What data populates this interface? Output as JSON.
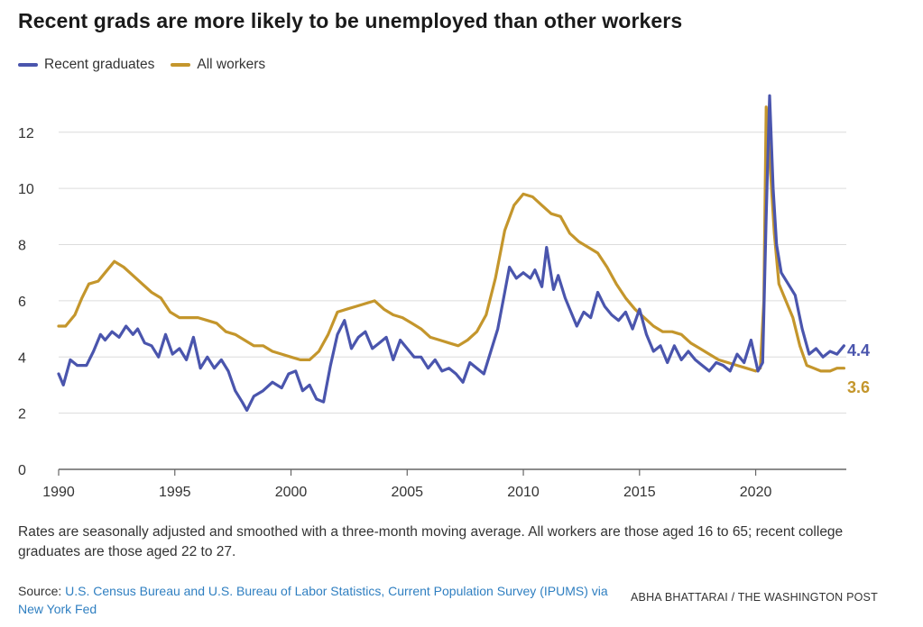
{
  "title": "Recent grads are more likely to be unemployed than other workers",
  "legend": [
    {
      "label": "Recent graduates",
      "color": "#4a55ad"
    },
    {
      "label": "All workers",
      "color": "#c4962c"
    }
  ],
  "note": "Rates are seasonally adjusted and smoothed with a three-month moving average. All workers are those aged 16 to 65; recent college graduates are those aged 22 to 27.",
  "source": {
    "prefix": "Source: ",
    "link_text": "U.S. Census Bureau and U.S. Bureau of Labor Statistics, Current Population Survey (IPUMS) via New York Fed"
  },
  "credit": "ABHA BHATTARAI / THE WASHINGTON POST",
  "chart_data": {
    "type": "line",
    "title": "Recent grads are more likely to be unemployed than other workers",
    "xlabel": "",
    "ylabel": "",
    "xlim": [
      1990,
      2023.9
    ],
    "ylim": [
      0,
      13.5
    ],
    "x_ticks": [
      "1990",
      "1995",
      "2000",
      "2005",
      "2010",
      "2015",
      "2020"
    ],
    "y_ticks": [
      "0",
      "2",
      "4",
      "6",
      "8",
      "10",
      "12"
    ],
    "grid": "horizontal",
    "legend_position": "top-left",
    "end_labels": [
      "4.4",
      "3.6"
    ],
    "series": [
      {
        "name": "Recent graduates",
        "color": "#4a55ad",
        "points": [
          [
            1990.0,
            3.4
          ],
          [
            1990.2,
            3.0
          ],
          [
            1990.5,
            3.9
          ],
          [
            1990.8,
            3.7
          ],
          [
            1991.2,
            3.7
          ],
          [
            1991.5,
            4.2
          ],
          [
            1991.8,
            4.8
          ],
          [
            1992.0,
            4.6
          ],
          [
            1992.3,
            4.9
          ],
          [
            1992.6,
            4.7
          ],
          [
            1992.9,
            5.1
          ],
          [
            1993.2,
            4.8
          ],
          [
            1993.4,
            5.0
          ],
          [
            1993.7,
            4.5
          ],
          [
            1994.0,
            4.4
          ],
          [
            1994.3,
            4.0
          ],
          [
            1994.6,
            4.8
          ],
          [
            1994.9,
            4.1
          ],
          [
            1995.2,
            4.3
          ],
          [
            1995.5,
            3.9
          ],
          [
            1995.8,
            4.7
          ],
          [
            1996.1,
            3.6
          ],
          [
            1996.4,
            4.0
          ],
          [
            1996.7,
            3.6
          ],
          [
            1997.0,
            3.9
          ],
          [
            1997.3,
            3.5
          ],
          [
            1997.6,
            2.8
          ],
          [
            1997.9,
            2.4
          ],
          [
            1998.1,
            2.1
          ],
          [
            1998.4,
            2.6
          ],
          [
            1998.8,
            2.8
          ],
          [
            1999.2,
            3.1
          ],
          [
            1999.6,
            2.9
          ],
          [
            1999.9,
            3.4
          ],
          [
            2000.2,
            3.5
          ],
          [
            2000.5,
            2.8
          ],
          [
            2000.8,
            3.0
          ],
          [
            2001.1,
            2.5
          ],
          [
            2001.4,
            2.4
          ],
          [
            2001.7,
            3.7
          ],
          [
            2002.0,
            4.8
          ],
          [
            2002.3,
            5.3
          ],
          [
            2002.6,
            4.3
          ],
          [
            2002.9,
            4.7
          ],
          [
            2003.2,
            4.9
          ],
          [
            2003.5,
            4.3
          ],
          [
            2003.8,
            4.5
          ],
          [
            2004.1,
            4.7
          ],
          [
            2004.4,
            3.9
          ],
          [
            2004.7,
            4.6
          ],
          [
            2005.0,
            4.3
          ],
          [
            2005.3,
            4.0
          ],
          [
            2005.6,
            4.0
          ],
          [
            2005.9,
            3.6
          ],
          [
            2006.2,
            3.9
          ],
          [
            2006.5,
            3.5
          ],
          [
            2006.8,
            3.6
          ],
          [
            2007.1,
            3.4
          ],
          [
            2007.4,
            3.1
          ],
          [
            2007.7,
            3.8
          ],
          [
            2008.0,
            3.6
          ],
          [
            2008.3,
            3.4
          ],
          [
            2008.6,
            4.2
          ],
          [
            2008.9,
            5.0
          ],
          [
            2009.2,
            6.3
          ],
          [
            2009.4,
            7.2
          ],
          [
            2009.7,
            6.8
          ],
          [
            2010.0,
            7.0
          ],
          [
            2010.3,
            6.8
          ],
          [
            2010.5,
            7.1
          ],
          [
            2010.8,
            6.5
          ],
          [
            2011.0,
            7.9
          ],
          [
            2011.3,
            6.4
          ],
          [
            2011.5,
            6.9
          ],
          [
            2011.8,
            6.1
          ],
          [
            2012.0,
            5.7
          ],
          [
            2012.3,
            5.1
          ],
          [
            2012.6,
            5.6
          ],
          [
            2012.9,
            5.4
          ],
          [
            2013.2,
            6.3
          ],
          [
            2013.5,
            5.8
          ],
          [
            2013.8,
            5.5
          ],
          [
            2014.1,
            5.3
          ],
          [
            2014.4,
            5.6
          ],
          [
            2014.7,
            5.0
          ],
          [
            2015.0,
            5.7
          ],
          [
            2015.3,
            4.8
          ],
          [
            2015.6,
            4.2
          ],
          [
            2015.9,
            4.4
          ],
          [
            2016.2,
            3.8
          ],
          [
            2016.5,
            4.4
          ],
          [
            2016.8,
            3.9
          ],
          [
            2017.1,
            4.2
          ],
          [
            2017.4,
            3.9
          ],
          [
            2017.7,
            3.7
          ],
          [
            2018.0,
            3.5
          ],
          [
            2018.3,
            3.8
          ],
          [
            2018.6,
            3.7
          ],
          [
            2018.9,
            3.5
          ],
          [
            2019.2,
            4.1
          ],
          [
            2019.5,
            3.8
          ],
          [
            2019.8,
            4.6
          ],
          [
            2020.1,
            3.5
          ],
          [
            2020.3,
            3.8
          ],
          [
            2020.45,
            9.0
          ],
          [
            2020.6,
            13.3
          ],
          [
            2020.75,
            10.0
          ],
          [
            2020.9,
            8.0
          ],
          [
            2021.1,
            7.0
          ],
          [
            2021.4,
            6.6
          ],
          [
            2021.7,
            6.2
          ],
          [
            2022.0,
            5.0
          ],
          [
            2022.3,
            4.1
          ],
          [
            2022.6,
            4.3
          ],
          [
            2022.9,
            4.0
          ],
          [
            2023.2,
            4.2
          ],
          [
            2023.5,
            4.1
          ],
          [
            2023.8,
            4.4
          ]
        ]
      },
      {
        "name": "All workers",
        "color": "#c4962c",
        "points": [
          [
            1990.0,
            5.1
          ],
          [
            1990.3,
            5.1
          ],
          [
            1990.7,
            5.5
          ],
          [
            1991.0,
            6.1
          ],
          [
            1991.3,
            6.6
          ],
          [
            1991.7,
            6.7
          ],
          [
            1992.0,
            7.0
          ],
          [
            1992.4,
            7.4
          ],
          [
            1992.8,
            7.2
          ],
          [
            1993.2,
            6.9
          ],
          [
            1993.6,
            6.6
          ],
          [
            1994.0,
            6.3
          ],
          [
            1994.4,
            6.1
          ],
          [
            1994.8,
            5.6
          ],
          [
            1995.2,
            5.4
          ],
          [
            1995.6,
            5.4
          ],
          [
            1996.0,
            5.4
          ],
          [
            1996.4,
            5.3
          ],
          [
            1996.8,
            5.2
          ],
          [
            1997.2,
            4.9
          ],
          [
            1997.6,
            4.8
          ],
          [
            1998.0,
            4.6
          ],
          [
            1998.4,
            4.4
          ],
          [
            1998.8,
            4.4
          ],
          [
            1999.2,
            4.2
          ],
          [
            1999.6,
            4.1
          ],
          [
            2000.0,
            4.0
          ],
          [
            2000.4,
            3.9
          ],
          [
            2000.8,
            3.9
          ],
          [
            2001.2,
            4.2
          ],
          [
            2001.6,
            4.8
          ],
          [
            2002.0,
            5.6
          ],
          [
            2002.4,
            5.7
          ],
          [
            2002.8,
            5.8
          ],
          [
            2003.2,
            5.9
          ],
          [
            2003.6,
            6.0
          ],
          [
            2004.0,
            5.7
          ],
          [
            2004.4,
            5.5
          ],
          [
            2004.8,
            5.4
          ],
          [
            2005.2,
            5.2
          ],
          [
            2005.6,
            5.0
          ],
          [
            2006.0,
            4.7
          ],
          [
            2006.4,
            4.6
          ],
          [
            2006.8,
            4.5
          ],
          [
            2007.2,
            4.4
          ],
          [
            2007.6,
            4.6
          ],
          [
            2008.0,
            4.9
          ],
          [
            2008.4,
            5.5
          ],
          [
            2008.8,
            6.8
          ],
          [
            2009.2,
            8.5
          ],
          [
            2009.6,
            9.4
          ],
          [
            2010.0,
            9.8
          ],
          [
            2010.4,
            9.7
          ],
          [
            2010.8,
            9.4
          ],
          [
            2011.2,
            9.1
          ],
          [
            2011.6,
            9.0
          ],
          [
            2012.0,
            8.4
          ],
          [
            2012.4,
            8.1
          ],
          [
            2012.8,
            7.9
          ],
          [
            2013.2,
            7.7
          ],
          [
            2013.6,
            7.2
          ],
          [
            2014.0,
            6.6
          ],
          [
            2014.4,
            6.1
          ],
          [
            2014.8,
            5.7
          ],
          [
            2015.2,
            5.4
          ],
          [
            2015.6,
            5.1
          ],
          [
            2016.0,
            4.9
          ],
          [
            2016.4,
            4.9
          ],
          [
            2016.8,
            4.8
          ],
          [
            2017.2,
            4.5
          ],
          [
            2017.6,
            4.3
          ],
          [
            2018.0,
            4.1
          ],
          [
            2018.4,
            3.9
          ],
          [
            2018.8,
            3.8
          ],
          [
            2019.2,
            3.7
          ],
          [
            2019.6,
            3.6
          ],
          [
            2020.0,
            3.5
          ],
          [
            2020.2,
            3.6
          ],
          [
            2020.35,
            6.0
          ],
          [
            2020.45,
            12.9
          ],
          [
            2020.6,
            11.1
          ],
          [
            2020.8,
            8.4
          ],
          [
            2021.0,
            6.6
          ],
          [
            2021.3,
            6.0
          ],
          [
            2021.6,
            5.4
          ],
          [
            2021.9,
            4.4
          ],
          [
            2022.2,
            3.7
          ],
          [
            2022.5,
            3.6
          ],
          [
            2022.8,
            3.5
          ],
          [
            2023.2,
            3.5
          ],
          [
            2023.5,
            3.6
          ],
          [
            2023.8,
            3.6
          ]
        ]
      }
    ]
  }
}
